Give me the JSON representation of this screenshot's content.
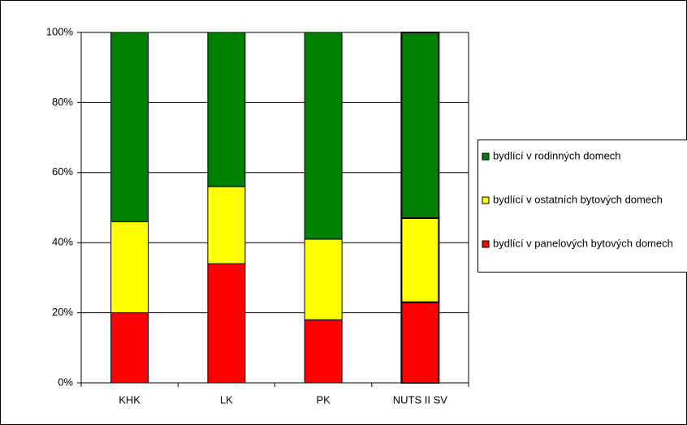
{
  "chart_data": {
    "type": "stacked_bar",
    "categories": [
      "KHK",
      "LK",
      "PK",
      "NUTS II SV"
    ],
    "series": [
      {
        "name": "bydlící v panelových bytových domech",
        "color": "#ff0000",
        "values": [
          20,
          34,
          18,
          23
        ]
      },
      {
        "name": "bydlící v ostatních bytových domech",
        "color": "#ffff00",
        "values": [
          26,
          22,
          23,
          24
        ]
      },
      {
        "name": "bydlící v rodinných domech",
        "color": "#008000",
        "values": [
          54,
          44,
          59,
          53
        ]
      }
    ],
    "ylim": [
      0,
      100
    ],
    "yticks": [
      {
        "value": 0,
        "label": "0%"
      },
      {
        "value": 20,
        "label": "20%"
      },
      {
        "value": 40,
        "label": "40%"
      },
      {
        "value": 60,
        "label": "60%"
      },
      {
        "value": 80,
        "label": "80%"
      },
      {
        "value": 100,
        "label": "100%"
      }
    ],
    "grid": true,
    "legend": "right"
  }
}
